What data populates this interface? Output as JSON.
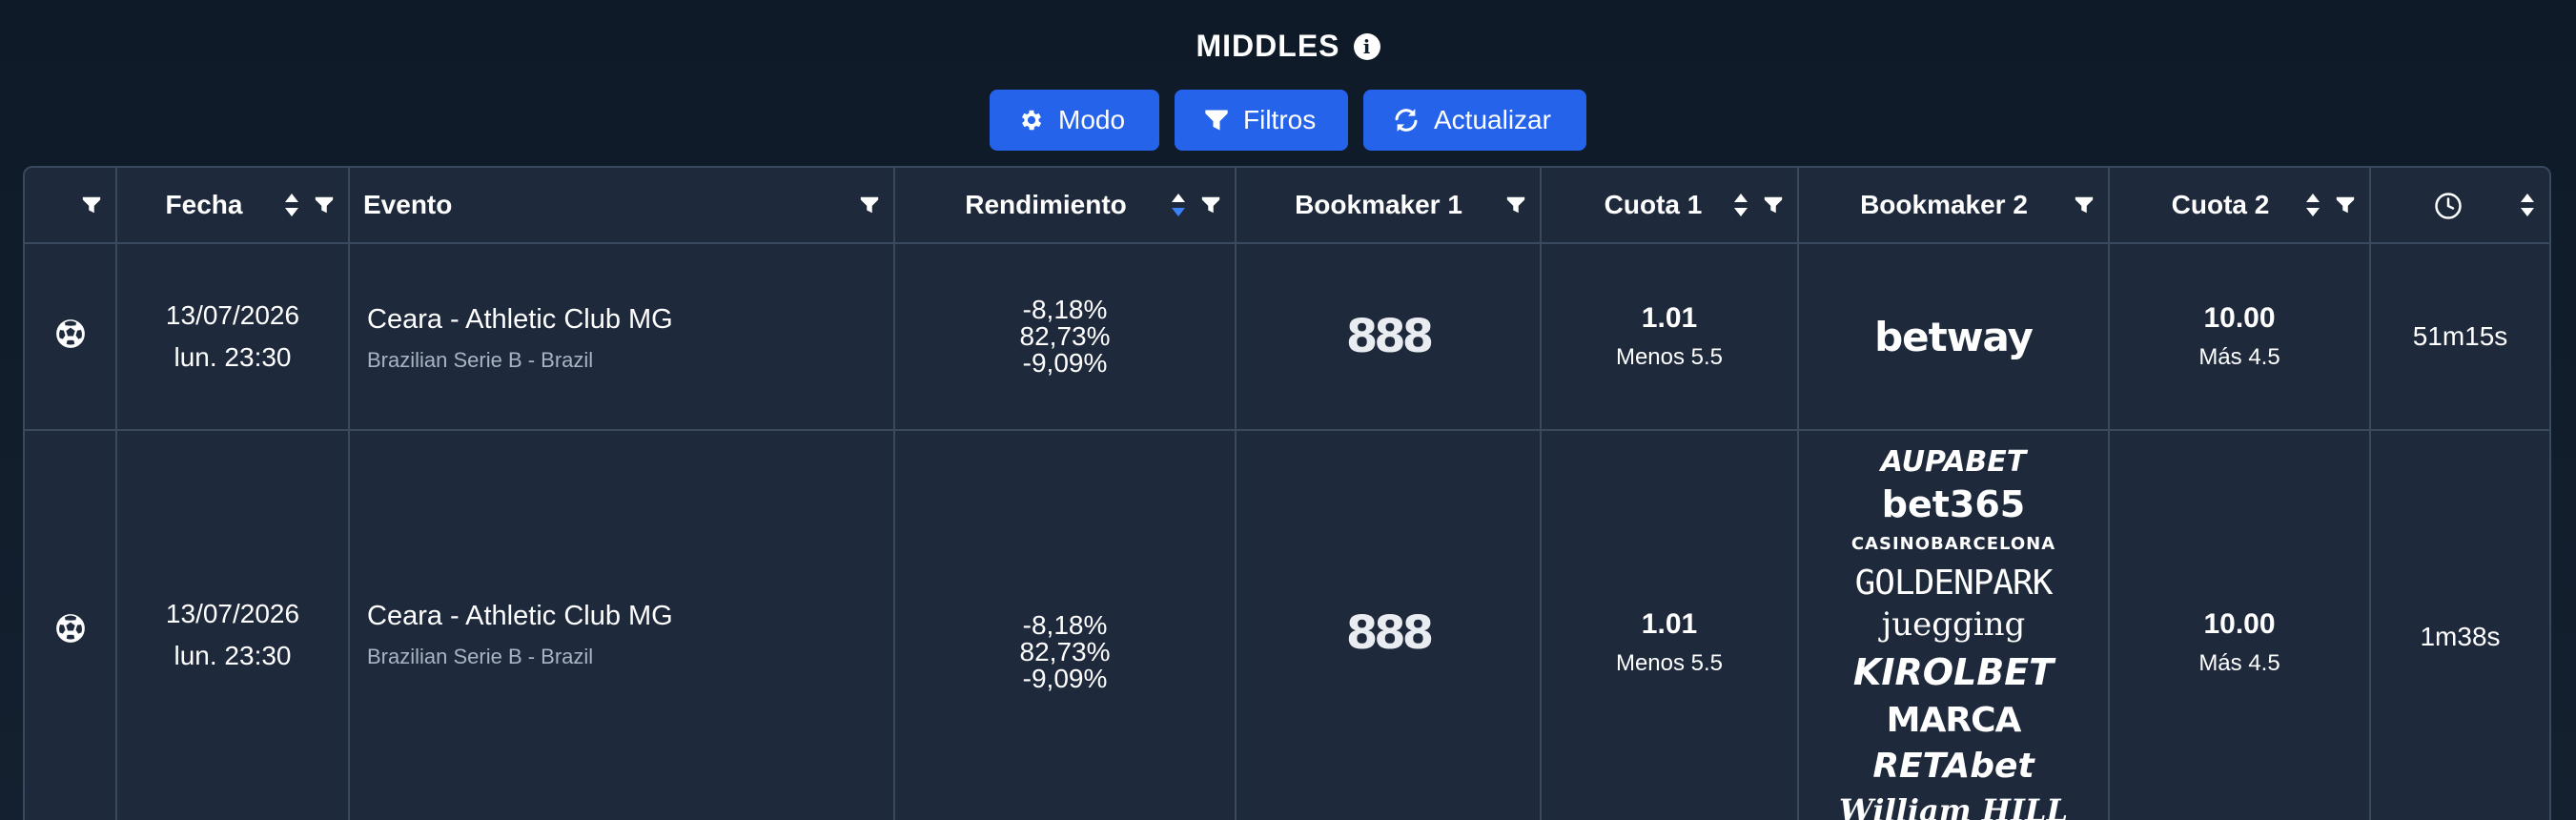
{
  "header": {
    "title": "MIDDLES",
    "info_icon": "info-circle-icon"
  },
  "toolbar": {
    "mode_label": "Modo",
    "filters_label": "Filtros",
    "refresh_label": "Actualizar",
    "button_color": "#2563eb"
  },
  "table": {
    "columns": {
      "sport": "",
      "date": "Fecha",
      "event": "Evento",
      "yield": "Rendimiento",
      "bookmaker1": "Bookmaker 1",
      "odds1": "Cuota 1",
      "bookmaker2": "Bookmaker 2",
      "odds2": "Cuota 2",
      "time_icon": "clock-icon"
    },
    "sort_active_color": "#3b82f6",
    "rows": [
      {
        "sport_icon": "soccer-ball-icon",
        "date": "13/07/2026",
        "time": "lun. 23:30",
        "event": "Ceara - Athletic Club MG",
        "league": "Brazilian Serie B - Brazil",
        "yield": [
          "-8,18%",
          "82,73%",
          "-9,09%"
        ],
        "bookmaker1": "888",
        "odds1": "1.01",
        "market1": "Menos 5.5",
        "bookmaker2": [
          "betway"
        ],
        "odds2": "10.00",
        "market2": "Más 4.5",
        "age": "51m15s"
      },
      {
        "sport_icon": "soccer-ball-icon",
        "date": "13/07/2026",
        "time": "lun. 23:30",
        "event": "Ceara - Athletic Club MG",
        "league": "Brazilian Serie B - Brazil",
        "yield": [
          "-8,18%",
          "82,73%",
          "-9,09%"
        ],
        "bookmaker1": "888",
        "odds1": "1.01",
        "market1": "Menos 5.5",
        "bookmaker2": [
          "AUPABET",
          "bet365",
          "CASINOBARCELONA",
          "GOLDENPARK",
          "juegging",
          "KIROLBET",
          "MARCA",
          "RETAbet",
          "William HILL"
        ],
        "odds2": "10.00",
        "market2": "Más 4.5",
        "age": "1m38s"
      }
    ]
  }
}
